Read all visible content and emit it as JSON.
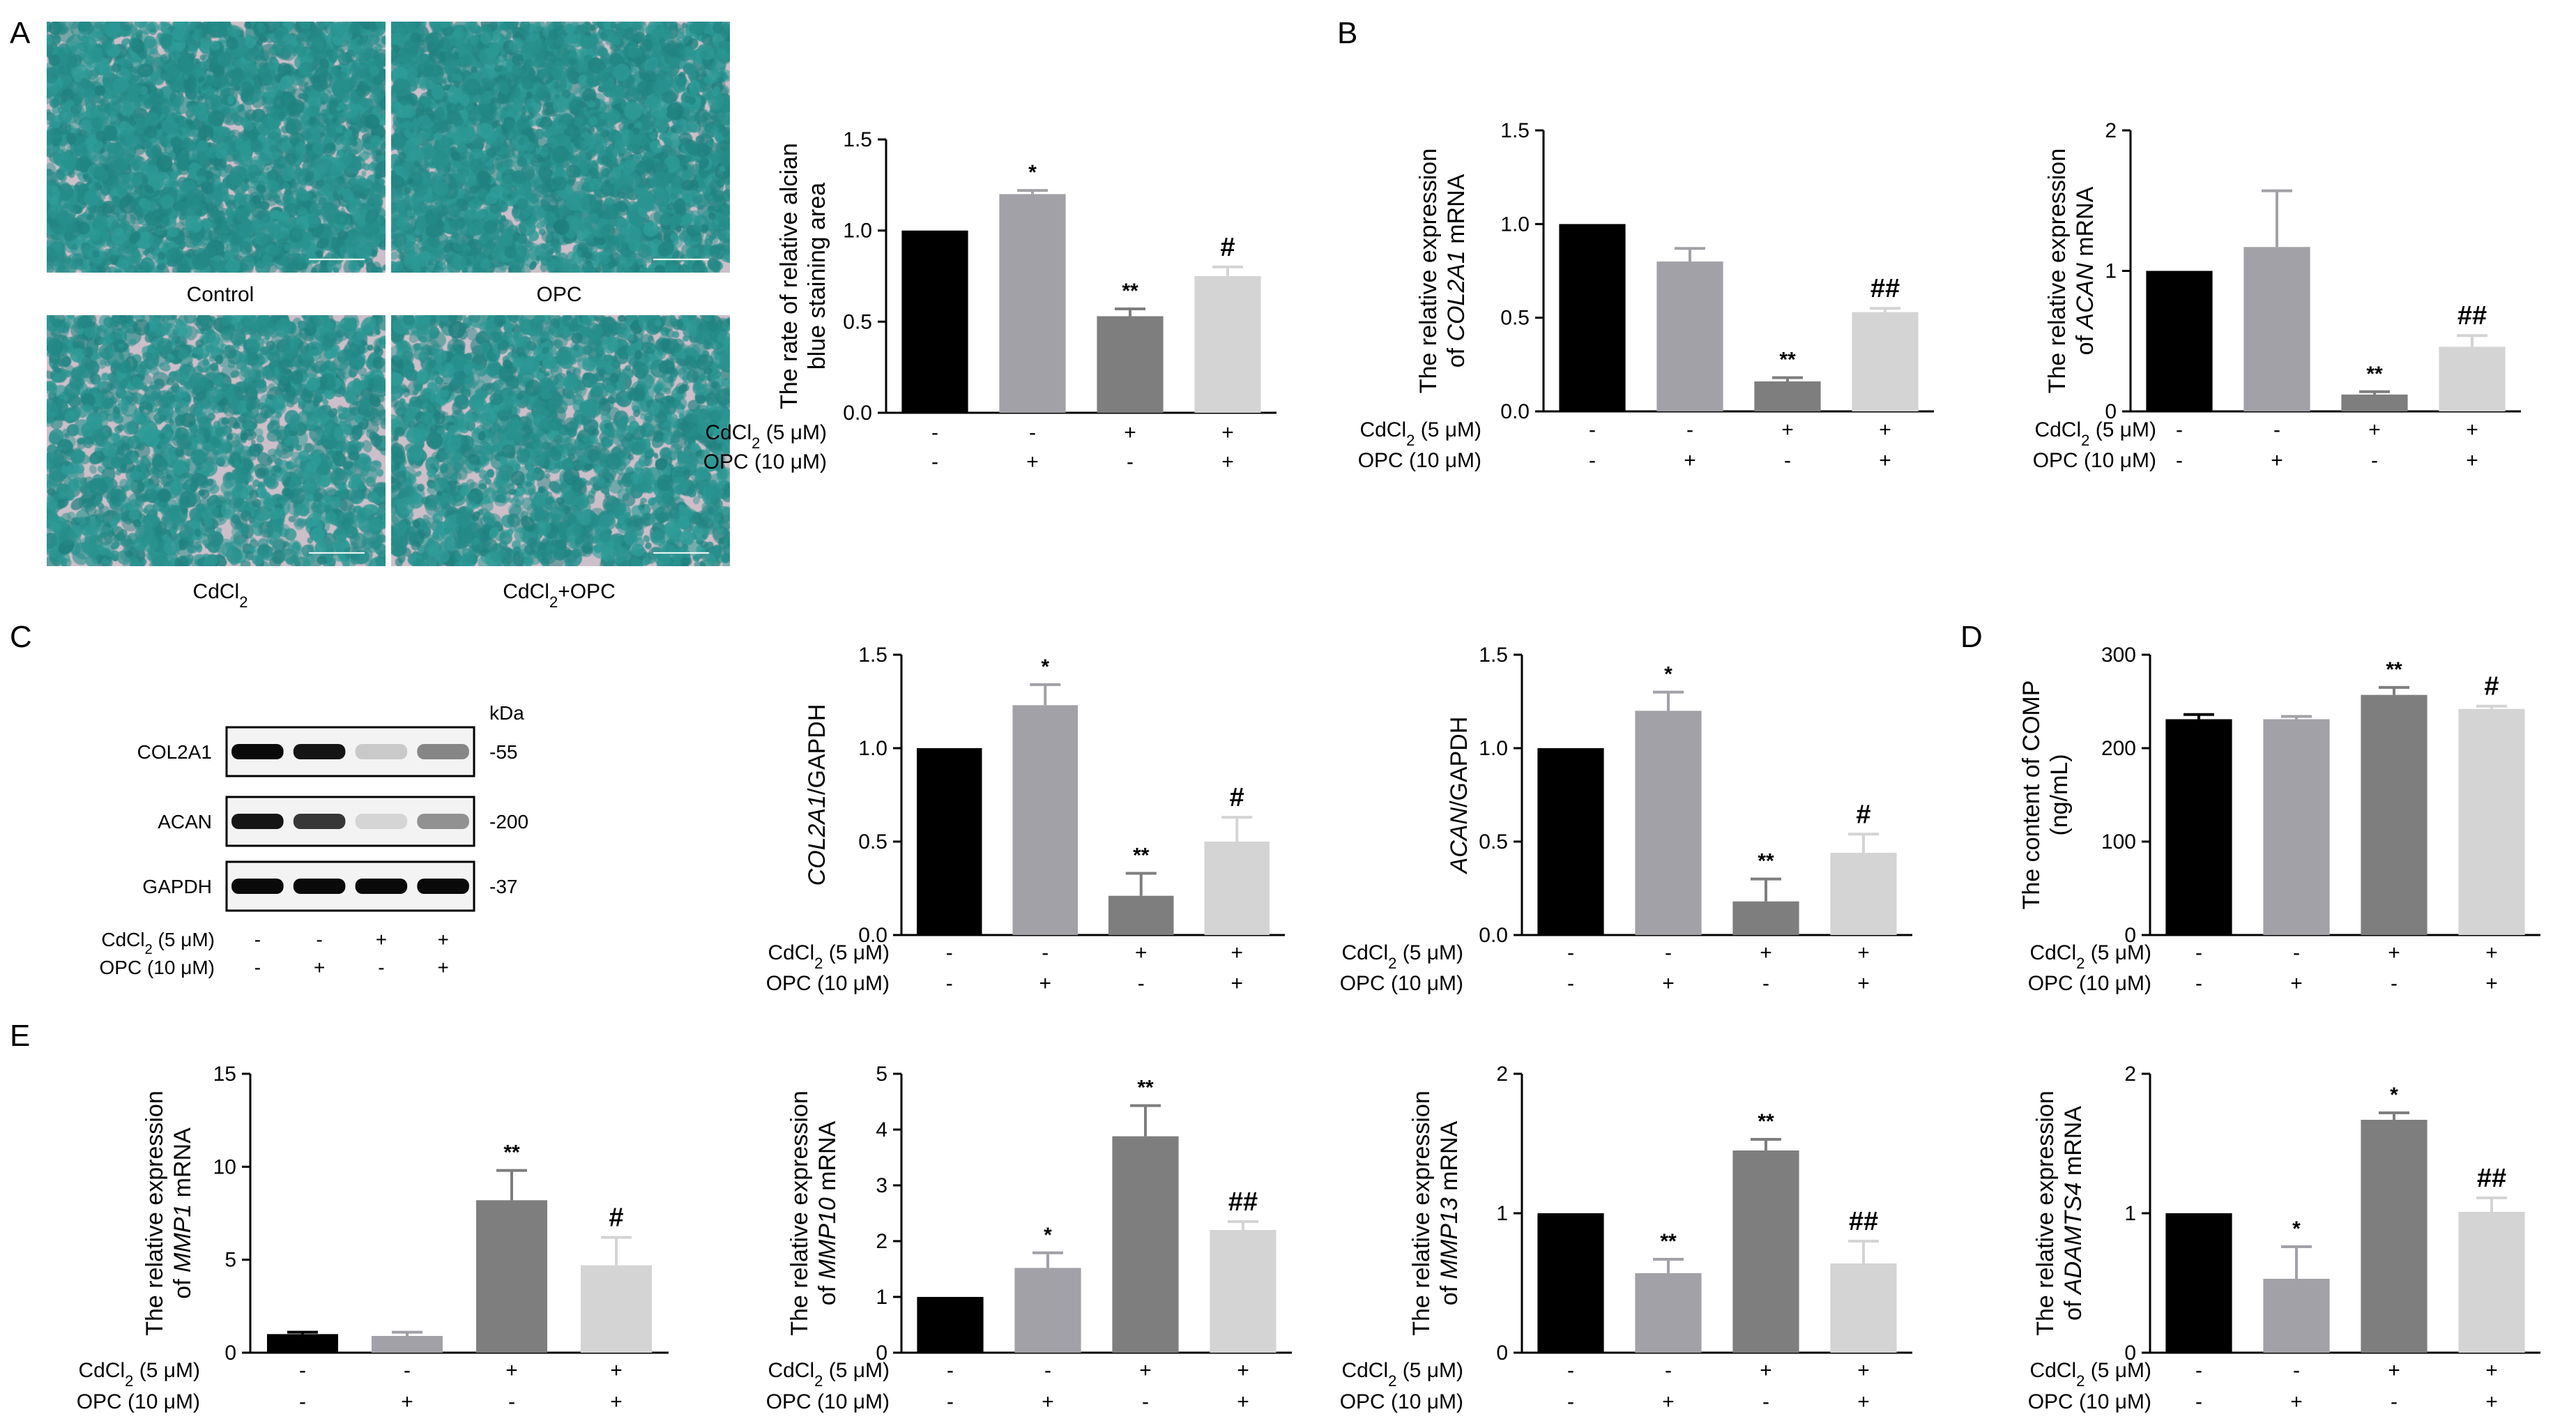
{
  "panel_letters": [
    "A",
    "B",
    "C",
    "D",
    "E"
  ],
  "micrographs": {
    "labels": [
      "Control",
      "OPC",
      "CdCl2",
      "CdCl2+OPC"
    ],
    "colors": {
      "background": "#cdbfc9",
      "stain": "#2f9e9a",
      "stain_dark": "#1f7f7d"
    }
  },
  "treatment": {
    "cdcl2_label": "CdCl2 (5 μM)",
    "opc_label": "OPC (10 μM)",
    "cdcl2": [
      "-",
      "-",
      "+",
      "+"
    ],
    "opc": [
      "-",
      "+",
      "-",
      "+"
    ]
  },
  "bar_colors": [
    "#000000",
    "#a1a1a7",
    "#7e7e7e",
    "#d4d4d4"
  ],
  "western_blot": {
    "kda_label": "kDa",
    "rows": [
      {
        "protein": "COL2A1",
        "kda": "-55",
        "intensity": [
          1.0,
          0.95,
          0.15,
          0.45
        ]
      },
      {
        "protein": "ACAN",
        "kda": "-200",
        "intensity": [
          0.95,
          0.8,
          0.1,
          0.4
        ]
      },
      {
        "protein": "GAPDH",
        "kda": "-37",
        "intensity": [
          1.0,
          1.0,
          1.0,
          1.0
        ]
      }
    ]
  },
  "chart_data": [
    {
      "id": "A",
      "type": "bar",
      "ylabel": [
        "The rate of relative alcian",
        "blue staining area"
      ],
      "ylim": [
        0,
        1.5
      ],
      "ticks": [
        0.0,
        0.5,
        1.0,
        1.5
      ],
      "tick_labels": [
        "0.0",
        "0.5",
        "1.0",
        "1.5"
      ],
      "values": [
        1.0,
        1.2,
        0.53,
        0.75
      ],
      "errors": [
        0,
        0.02,
        0.04,
        0.05
      ],
      "marks": [
        "",
        "*",
        "**",
        "#"
      ]
    },
    {
      "id": "B1",
      "type": "bar",
      "ylabel": [
        "The relative expression",
        "of COL2A1 mRNA"
      ],
      "ylim": [
        0,
        1.5
      ],
      "ticks": [
        0.0,
        0.5,
        1.0,
        1.5
      ],
      "tick_labels": [
        "0.0",
        "0.5",
        "1.0",
        "1.5"
      ],
      "values": [
        1.0,
        0.8,
        0.16,
        0.53
      ],
      "errors": [
        0,
        0.07,
        0.02,
        0.02
      ],
      "marks": [
        "",
        "",
        "**",
        "##"
      ]
    },
    {
      "id": "B2",
      "type": "bar",
      "ylabel": [
        "The relative expression",
        "of ACAN mRNA"
      ],
      "ylim": [
        0,
        2
      ],
      "ticks": [
        0,
        1,
        2
      ],
      "tick_labels": [
        "0",
        "1",
        "2"
      ],
      "values": [
        1.0,
        1.17,
        0.12,
        0.46
      ],
      "errors": [
        0,
        0.4,
        0.02,
        0.08
      ],
      "marks": [
        "",
        "",
        "**",
        "##"
      ]
    },
    {
      "id": "C1",
      "type": "bar",
      "ylabel": [
        "COL2A1/GAPDH"
      ],
      "ylim": [
        0,
        1.5
      ],
      "ticks": [
        0.0,
        0.5,
        1.0,
        1.5
      ],
      "tick_labels": [
        "0.0",
        "0.5",
        "1.0",
        "1.5"
      ],
      "values": [
        1.0,
        1.23,
        0.21,
        0.5
      ],
      "errors": [
        0,
        0.11,
        0.12,
        0.13
      ],
      "marks": [
        "",
        "*",
        "**",
        "#"
      ]
    },
    {
      "id": "C2",
      "type": "bar",
      "ylabel": [
        "ACAN/GAPDH"
      ],
      "ylim": [
        0,
        1.5
      ],
      "ticks": [
        0.0,
        0.5,
        1.0,
        1.5
      ],
      "tick_labels": [
        "0.0",
        "0.5",
        "1.0",
        "1.5"
      ],
      "values": [
        1.0,
        1.2,
        0.18,
        0.44
      ],
      "errors": [
        0,
        0.1,
        0.12,
        0.1
      ],
      "marks": [
        "",
        "*",
        "**",
        "#"
      ]
    },
    {
      "id": "D",
      "type": "bar",
      "ylabel": [
        "The content of COMP",
        "(ng/mL)"
      ],
      "ylim": [
        0,
        300
      ],
      "ticks": [
        0,
        100,
        200,
        300
      ],
      "tick_labels": [
        "0",
        "100",
        "200",
        "300"
      ],
      "values": [
        231,
        231,
        257,
        242
      ],
      "errors": [
        5,
        3,
        8,
        3
      ],
      "marks": [
        "",
        "",
        "**",
        "#"
      ]
    },
    {
      "id": "E1",
      "type": "bar",
      "ylabel": [
        "The relative expression",
        "of MMP1 mRNA"
      ],
      "ylim": [
        0,
        15
      ],
      "ticks": [
        0,
        5,
        10,
        15
      ],
      "tick_labels": [
        "0",
        "5",
        "10",
        "15"
      ],
      "values": [
        1.0,
        0.9,
        8.2,
        4.7
      ],
      "errors": [
        0.1,
        0.2,
        1.6,
        1.5
      ],
      "marks": [
        "",
        "",
        "**",
        "#"
      ]
    },
    {
      "id": "E2",
      "type": "bar",
      "ylabel": [
        "The relative expression",
        "of MMP10 mRNA"
      ],
      "ylim": [
        0,
        5
      ],
      "ticks": [
        0,
        1,
        2,
        3,
        4,
        5
      ],
      "tick_labels": [
        "0",
        "1",
        "2",
        "3",
        "4",
        "5"
      ],
      "values": [
        1.0,
        1.52,
        3.88,
        2.2
      ],
      "errors": [
        0,
        0.27,
        0.55,
        0.15
      ],
      "marks": [
        "",
        "*",
        "**",
        "##"
      ]
    },
    {
      "id": "E3",
      "type": "bar",
      "ylabel": [
        "The relative expression",
        "of MMP13 mRNA"
      ],
      "ylim": [
        0,
        2
      ],
      "ticks": [
        0,
        1,
        2
      ],
      "tick_labels": [
        "0",
        "1",
        "2"
      ],
      "values": [
        1.0,
        0.57,
        1.45,
        0.64
      ],
      "errors": [
        0,
        0.1,
        0.08,
        0.16
      ],
      "marks": [
        "",
        "**",
        "**",
        "##"
      ]
    },
    {
      "id": "E4",
      "type": "bar",
      "ylabel": [
        "The relative expression",
        "of ADAMTS4 mRNA"
      ],
      "ylim": [
        0,
        2
      ],
      "ticks": [
        0,
        1,
        2
      ],
      "tick_labels": [
        "0",
        "1",
        "2"
      ],
      "values": [
        1.0,
        0.53,
        1.67,
        1.01
      ],
      "errors": [
        0,
        0.23,
        0.05,
        0.1
      ],
      "marks": [
        "",
        "*",
        "*",
        "##"
      ]
    }
  ]
}
